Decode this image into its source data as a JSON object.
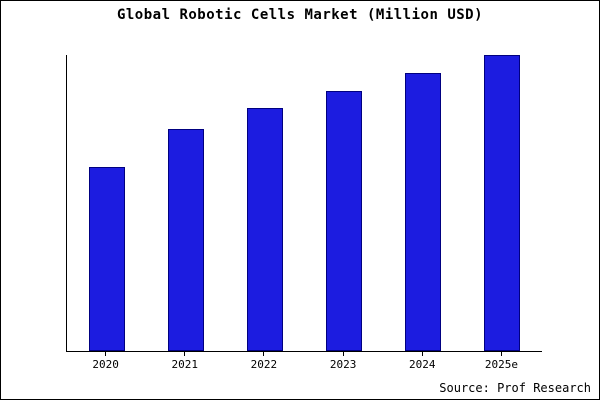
{
  "source_label": "Source: Prof Research",
  "chart_data": {
    "type": "bar",
    "title": "Global Robotic Cells Market (Million USD)",
    "categories": [
      "2020",
      "2021",
      "2022",
      "2023",
      "2024",
      "2025e"
    ],
    "values": [
      62,
      75,
      82,
      88,
      94,
      100
    ],
    "xlabel": "",
    "ylabel": "",
    "ylim": [
      0,
      100
    ],
    "grid": "off",
    "legend": "none",
    "bar_color": "#1c1ce0",
    "bar_edge_color": "#000080",
    "units": "Million USD (relative scale, no y-axis labels shown)"
  }
}
